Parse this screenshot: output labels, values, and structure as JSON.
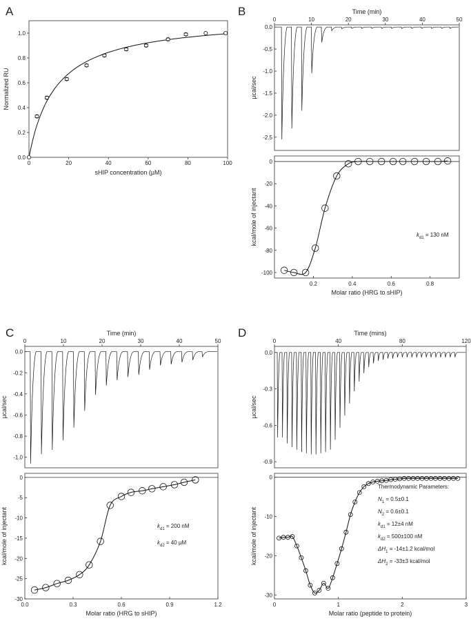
{
  "chart_data": [
    {
      "panel": "A",
      "type": "scatter",
      "xlabel": "sHIP concentration (µM)",
      "ylabel": "Normalized RU",
      "xlim": [
        0,
        100
      ],
      "ylim": [
        0,
        1.1
      ],
      "x_ticks": [
        "0",
        "20",
        "40",
        "60",
        "80",
        "100"
      ],
      "y_ticks": [
        "0.0",
        "0.2",
        "0.4",
        "0.6",
        "0.8",
        "1.0"
      ],
      "grid": false,
      "fit_curve": {
        "type": "hyperbolic"
      },
      "series": [
        {
          "x": [
            0,
            4,
            9,
            19,
            29,
            38,
            49,
            59,
            70,
            79,
            89,
            99
          ],
          "y": [
            0.0,
            0.33,
            0.48,
            0.63,
            0.74,
            0.82,
            0.87,
            0.9,
            0.95,
            0.99,
            1.0,
            1.0
          ]
        }
      ]
    },
    {
      "panel": "B",
      "type": "line",
      "top": {
        "xlabel": "Time (min)",
        "ylabel": "µcal/sec",
        "xlim": [
          0,
          50
        ],
        "ylim": [
          -2.8,
          0.05
        ],
        "x_ticks": [
          "0",
          "10",
          "20",
          "30",
          "40",
          "50"
        ],
        "y_ticks": [
          "0.0",
          "-0.5",
          "-1.0",
          "-1.5",
          "-2.0",
          "-2.5"
        ],
        "injection_times": [
          2,
          4.7,
          7.4,
          10.1,
          12.8,
          15.5,
          18.2,
          20.9,
          23.6,
          26.3,
          29.0,
          31.7,
          34.4,
          37.1,
          39.8,
          42.5,
          45.2,
          47.5
        ],
        "peak_heights": [
          -2.55,
          -2.3,
          -1.9,
          -1.05,
          -0.35,
          -0.08,
          -0.04,
          -0.03,
          -0.03,
          -0.03,
          -0.03,
          -0.03,
          -0.03,
          -0.03,
          -0.03,
          -0.03,
          -0.03,
          -0.03
        ]
      },
      "bottom": {
        "xlabel": "Molar ratio (HRG to sHIP)",
        "ylabel": "kcal/mole of injectant",
        "xlim": [
          0,
          0.95
        ],
        "ylim": [
          -105,
          5
        ],
        "x_ticks": [
          "0.2",
          "0.4",
          "0.6",
          "0.8"
        ],
        "y_ticks": [
          "0",
          "-20",
          "-40",
          "-60",
          "-80",
          "-100"
        ],
        "x": [
          0.05,
          0.1,
          0.16,
          0.21,
          0.26,
          0.32,
          0.38,
          0.43,
          0.49,
          0.55,
          0.61,
          0.66,
          0.72,
          0.78,
          0.84,
          0.89
        ],
        "y": [
          -98,
          -100,
          -100,
          -78,
          -42,
          -13,
          -2,
          0,
          0,
          0,
          0,
          0,
          0,
          0,
          0,
          0.5
        ]
      },
      "annotations": [
        {
          "symbol": "k",
          "sub": "d1",
          "value": " = 130 nM"
        }
      ]
    },
    {
      "panel": "C",
      "type": "line",
      "top": {
        "xlabel": "Time (min)",
        "ylabel": "µcal/sec",
        "xlim": [
          0,
          50
        ],
        "ylim": [
          -1.1,
          0.05
        ],
        "x_ticks": [
          "0",
          "10",
          "20",
          "30",
          "40",
          "50"
        ],
        "y_ticks": [
          "0.0",
          "-0.2",
          "-0.4",
          "-0.6",
          "-0.8",
          "-1.0"
        ],
        "injection_times": [
          1.5,
          4.3,
          7.1,
          9.9,
          12.7,
          15.5,
          18.3,
          21.1,
          23.9,
          26.7,
          29.5,
          32.3,
          35.1,
          37.9,
          40.7,
          43.5,
          46.0
        ],
        "peak_heights": [
          -1.06,
          -0.97,
          -0.93,
          -0.84,
          -0.72,
          -0.56,
          -0.41,
          -0.32,
          -0.27,
          -0.24,
          -0.22,
          -0.17,
          -0.13,
          -0.12,
          -0.1,
          -0.08,
          -0.05
        ]
      },
      "bottom": {
        "xlabel": "Molar ratio (HRG to sHIP)",
        "ylabel": "kcal/mole of injectant",
        "xlim": [
          0,
          1.2
        ],
        "ylim": [
          -30,
          1
        ],
        "x_ticks": [
          "0.0",
          "0.3",
          "0.6",
          "0.9",
          "1.2"
        ],
        "y_ticks": [
          "0",
          "-5",
          "-10",
          "-15",
          "-20",
          "-25",
          "-30"
        ],
        "x": [
          0.06,
          0.13,
          0.2,
          0.27,
          0.34,
          0.4,
          0.47,
          0.53,
          0.6,
          0.66,
          0.73,
          0.79,
          0.86,
          0.93,
          0.99,
          1.06
        ],
        "y": [
          -27.8,
          -27.2,
          -26.2,
          -25.4,
          -24.0,
          -21.6,
          -15.8,
          -6.9,
          -4.7,
          -3.7,
          -3.3,
          -2.8,
          -2.3,
          -1.8,
          -1.2,
          -0.6
        ]
      },
      "annotations": [
        {
          "symbol": "k",
          "sub": "d1",
          "value": " = 200 nM"
        },
        {
          "symbol": "k",
          "sub": "d2",
          "value": " = 40 µM"
        }
      ]
    },
    {
      "panel": "D",
      "type": "line",
      "top": {
        "xlabel": "Time (mins)",
        "ylabel": "µcal/sec",
        "xlim": [
          0,
          120
        ],
        "ylim": [
          -0.95,
          0.05
        ],
        "x_ticks": [
          "0",
          "40",
          "80",
          "120"
        ],
        "y_ticks": [
          "0.0",
          "-0.3",
          "-0.6",
          "-0.9"
        ],
        "injection_times": [
          2,
          5,
          8,
          11,
          14,
          17,
          20,
          23,
          26,
          29,
          32,
          35,
          38,
          41,
          44,
          47,
          50,
          53,
          56,
          59,
          62,
          65,
          68,
          71,
          74,
          77,
          80,
          83,
          86,
          89,
          92,
          95,
          98,
          101,
          104,
          107,
          110,
          113
        ],
        "peak_heights": [
          -0.7,
          -0.7,
          -0.75,
          -0.78,
          -0.8,
          -0.82,
          -0.83,
          -0.84,
          -0.84,
          -0.83,
          -0.82,
          -0.8,
          -0.72,
          -0.62,
          -0.52,
          -0.42,
          -0.32,
          -0.24,
          -0.17,
          -0.12,
          -0.09,
          -0.07,
          -0.06,
          -0.05,
          -0.05,
          -0.04,
          -0.04,
          -0.04,
          -0.04,
          -0.04,
          -0.04,
          -0.04,
          -0.04,
          -0.04,
          -0.04,
          -0.04,
          -0.04,
          -0.04
        ]
      },
      "bottom": {
        "xlabel": "Molar ratio (peptide to protein)",
        "ylabel": "kcal/mole of injectant",
        "xlim": [
          0,
          3
        ],
        "ylim": [
          -31,
          1
        ],
        "x_ticks": [
          "0",
          "1",
          "2",
          "3"
        ],
        "y_ticks": [
          "0",
          "-10",
          "-20",
          "-30"
        ],
        "x": [
          0.07,
          0.14,
          0.21,
          0.28,
          0.35,
          0.42,
          0.49,
          0.56,
          0.63,
          0.7,
          0.77,
          0.84,
          0.91,
          0.98,
          1.05,
          1.12,
          1.19,
          1.26,
          1.33,
          1.4,
          1.47,
          1.54,
          1.61,
          1.68,
          1.75,
          1.82,
          1.89,
          1.96,
          2.03,
          2.1,
          2.17,
          2.24,
          2.31,
          2.38,
          2.45,
          2.52,
          2.59,
          2.66,
          2.73,
          2.8,
          2.87
        ],
        "y": [
          -15.5,
          -15.3,
          -15.3,
          -15.1,
          -17.5,
          -20.5,
          -23.8,
          -27.5,
          -29.5,
          -28.8,
          -27,
          -28.3,
          -25.6,
          -22,
          -18.2,
          -14,
          -9.5,
          -6.3,
          -3.9,
          -2.4,
          -1.6,
          -1.2,
          -1.0,
          -0.9,
          -0.8,
          -0.6,
          -0.5,
          -0.4,
          -0.3,
          -0.3,
          -0.3,
          -0.3,
          -0.3,
          -0.3,
          -0.3,
          -0.3,
          -0.3,
          -0.3,
          -0.3,
          -0.3,
          -0.3
        ]
      },
      "annotations": [
        {
          "symbol": "",
          "sub": "",
          "value": "Thermodynamic Parameters:"
        },
        {
          "symbol": "N",
          "sub": "1",
          "value": " = 0.5±0.1"
        },
        {
          "symbol": "N",
          "sub": "2",
          "value": " = 0.6±0.1"
        },
        {
          "symbol": "k",
          "sub": "d1",
          "value": " = 12±4 nM"
        },
        {
          "symbol": "k",
          "sub": "d2",
          "value": " = 500±100 nM"
        },
        {
          "symbol": "ΔH",
          "sub": "1",
          "value": " = -14±1.2 kcal/mol"
        },
        {
          "symbol": "ΔH",
          "sub": "2",
          "value": " = -33±3 kcal/mol"
        }
      ]
    }
  ]
}
